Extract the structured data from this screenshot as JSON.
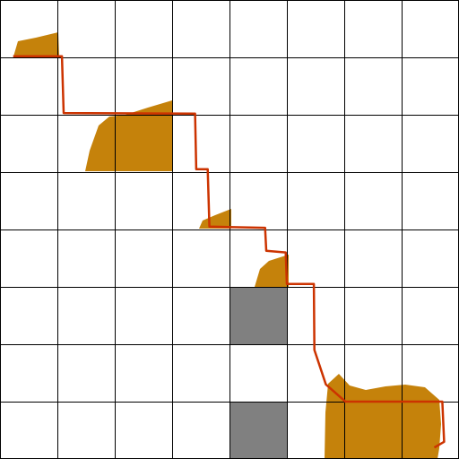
{
  "grid": {
    "rows": 8,
    "cols": 8
  },
  "colors": {
    "background": "#ffffff",
    "gridline": "#000000",
    "blocked_cell": "#808080",
    "terrain": "#c5820b",
    "path": "#cc3300",
    "path_outline": "#8b0000"
  },
  "blocked_cells": [
    {
      "row": 5,
      "col": 4
    },
    {
      "row": 7,
      "col": 4
    }
  ],
  "path_points_cells": [
    [
      0.23,
      0.98
    ],
    [
      1.08,
      0.98
    ],
    [
      1.11,
      1.97
    ],
    [
      3.4,
      1.98
    ],
    [
      3.42,
      2.95
    ],
    [
      3.62,
      2.95
    ],
    [
      3.65,
      3.95
    ],
    [
      4.62,
      3.97
    ],
    [
      4.64,
      4.37
    ],
    [
      4.98,
      4.4
    ],
    [
      5.0,
      4.95
    ],
    [
      5.47,
      4.95
    ],
    [
      5.48,
      6.1
    ],
    [
      5.68,
      6.7
    ],
    [
      6.02,
      7.0
    ],
    [
      7.71,
      7.0
    ],
    [
      7.74,
      7.7
    ],
    [
      7.57,
      7.8
    ]
  ]
}
